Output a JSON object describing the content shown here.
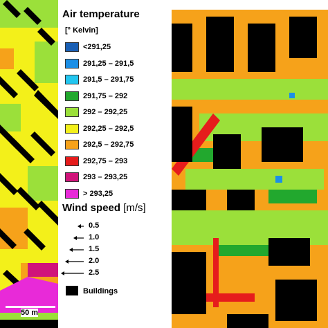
{
  "legend": {
    "air_title": "Air temperature",
    "unit": "[° Kelvin]",
    "classes": [
      {
        "label": "<291,25",
        "color": "#1a5fb4"
      },
      {
        "label": "291,25 – 291,5",
        "color": "#1c8fe6"
      },
      {
        "label": "291,5 – 291,75",
        "color": "#22c6f0"
      },
      {
        "label": "291,75 – 292",
        "color": "#22a82e"
      },
      {
        "label": "292 – 292,25",
        "color": "#9be03a"
      },
      {
        "label": "292,25 – 292,5",
        "color": "#f3f01a"
      },
      {
        "label": "292,5 – 292,75",
        "color": "#f6a21a"
      },
      {
        "label": "292,75 – 293",
        "color": "#e61c1c"
      },
      {
        "label": "293 – 293,25",
        "color": "#d0147a"
      },
      {
        "label": "> 293,25",
        "color": "#e82ad8"
      }
    ],
    "wind_title": "Wind speed",
    "wind_unit": "[m/s]",
    "wind_classes": [
      "0.5",
      "1.0",
      "1.5",
      "2.0",
      "2.5"
    ],
    "buildings_label": "Buildings",
    "building_color": "#000000"
  },
  "scale": {
    "label": "50 m"
  }
}
